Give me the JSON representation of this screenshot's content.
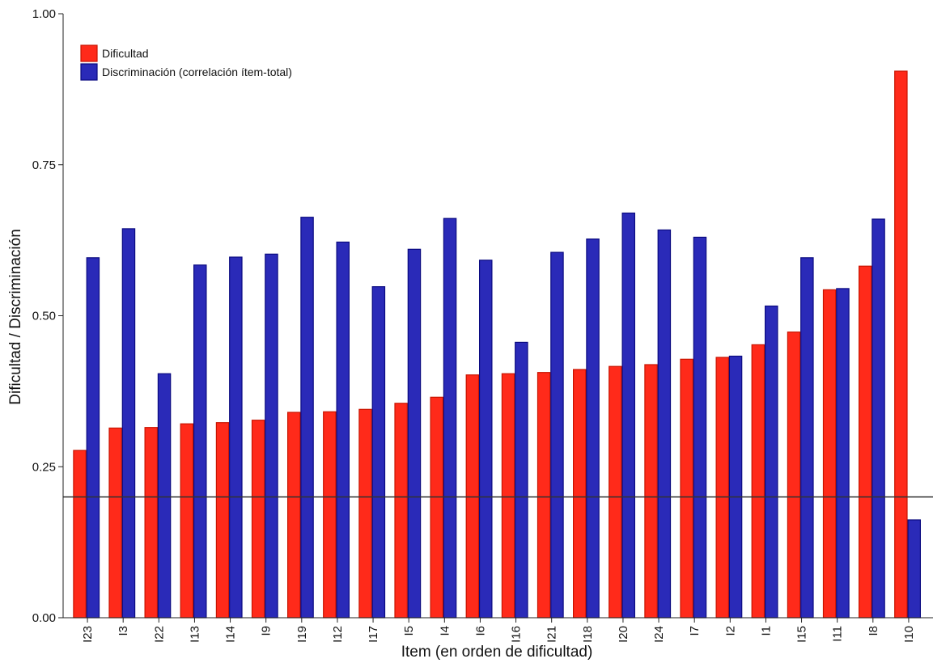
{
  "chart_data": {
    "type": "bar",
    "xlabel": "Item (en orden de dificultad)",
    "ylabel": "Dificultad / Discriminación",
    "ylim": [
      0,
      1
    ],
    "yticks": [
      "0.00",
      "0.25",
      "0.50",
      "0.75",
      "1.00"
    ],
    "reference_line": 0.2,
    "grid": false,
    "legend_position": "top-left",
    "categories": [
      "I23",
      "I3",
      "I22",
      "I13",
      "I14",
      "I9",
      "I19",
      "I12",
      "I17",
      "I5",
      "I4",
      "I6",
      "I16",
      "I21",
      "I18",
      "I20",
      "I24",
      "I7",
      "I2",
      "I1",
      "I15",
      "I11",
      "I8",
      "I10"
    ],
    "series": [
      {
        "name": "Dificultad",
        "color": "#ff2a1a",
        "stroke": "#c81400",
        "values": [
          0.277,
          0.314,
          0.315,
          0.321,
          0.323,
          0.327,
          0.34,
          0.341,
          0.345,
          0.355,
          0.365,
          0.402,
          0.404,
          0.406,
          0.411,
          0.416,
          0.419,
          0.428,
          0.431,
          0.452,
          0.473,
          0.543,
          0.582,
          0.905
        ]
      },
      {
        "name": "Discriminación (correlación ítem-total)",
        "color": "#2a2ab8",
        "stroke": "#0a0a80",
        "values": [
          0.596,
          0.644,
          0.404,
          0.584,
          0.597,
          0.602,
          0.663,
          0.622,
          0.548,
          0.61,
          0.661,
          0.592,
          0.456,
          0.605,
          0.627,
          0.67,
          0.642,
          0.63,
          0.433,
          0.516,
          0.596,
          0.545,
          0.66,
          0.162
        ]
      }
    ]
  }
}
